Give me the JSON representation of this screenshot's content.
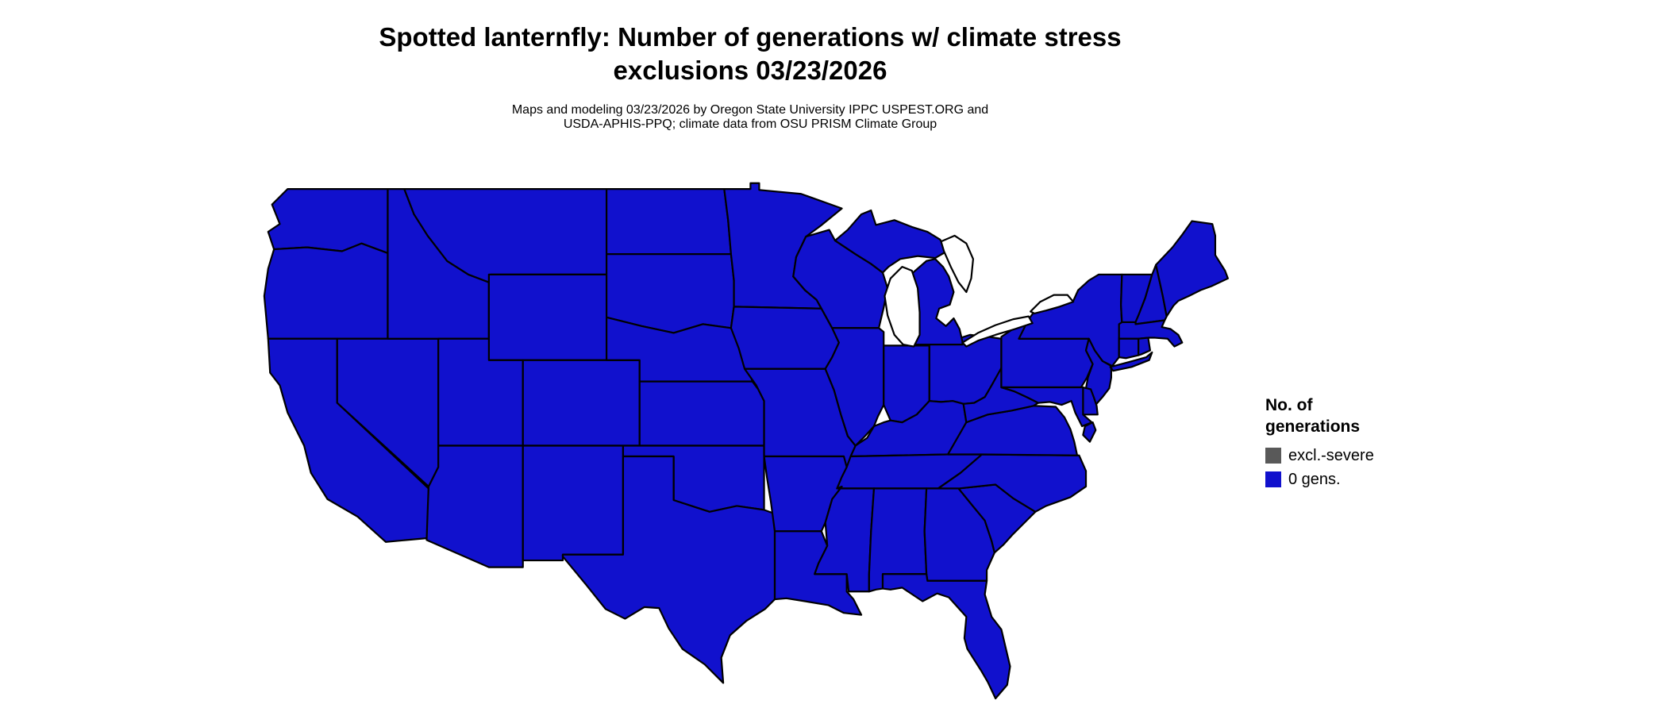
{
  "page": {
    "background": "#ffffff"
  },
  "header": {
    "title_line1": "Spotted lanternfly: Number of generations w/ climate stress",
    "title_line2": "exclusions 03/23/2026",
    "subtitle_line1": "Maps and modeling 03/23/2026 by Oregon State University IPPC USPEST.ORG and",
    "subtitle_line2": "USDA-APHIS-PPQ; climate data from OSU PRISM Climate Group"
  },
  "legend": {
    "title_line1": "No. of",
    "title_line2": "generations",
    "items": [
      {
        "label": "excl.-severe",
        "color": "#595959"
      },
      {
        "label": "0 gens.",
        "color": "#1111cd"
      }
    ]
  },
  "map": {
    "land_color": "#1111cd",
    "border_color": "#000000",
    "water_color": "#ffffff"
  },
  "chart_data": {
    "type": "choropleth-map",
    "title": "Spotted lanternfly: Number of generations w/ climate stress exclusions 03/23/2026",
    "region": "Contiguous United States",
    "date": "03/23/2026",
    "legend_title": "No. of generations",
    "categories": [
      "excl.-severe",
      "0 gens."
    ],
    "category_colors": [
      "#595959",
      "#1111cd"
    ],
    "states": [
      "WA",
      "OR",
      "CA",
      "NV",
      "ID",
      "MT",
      "WY",
      "UT",
      "CO",
      "AZ",
      "NM",
      "ND",
      "SD",
      "NE",
      "KS",
      "OK",
      "TX",
      "MN",
      "IA",
      "MO",
      "AR",
      "LA",
      "WI",
      "IL",
      "IN",
      "OH",
      "MI",
      "KY",
      "TN",
      "MS",
      "AL",
      "GA",
      "FL",
      "SC",
      "NC",
      "VA",
      "WV",
      "PA",
      "NY",
      "NJ",
      "DE",
      "MD",
      "VT",
      "NH",
      "ME",
      "MA",
      "CT",
      "RI"
    ],
    "uniform_value": "0 gens.",
    "note": "Every contiguous US state is shaded the '0 gens.' blue category; no areas shown in the 'excl.-severe' gray category."
  }
}
